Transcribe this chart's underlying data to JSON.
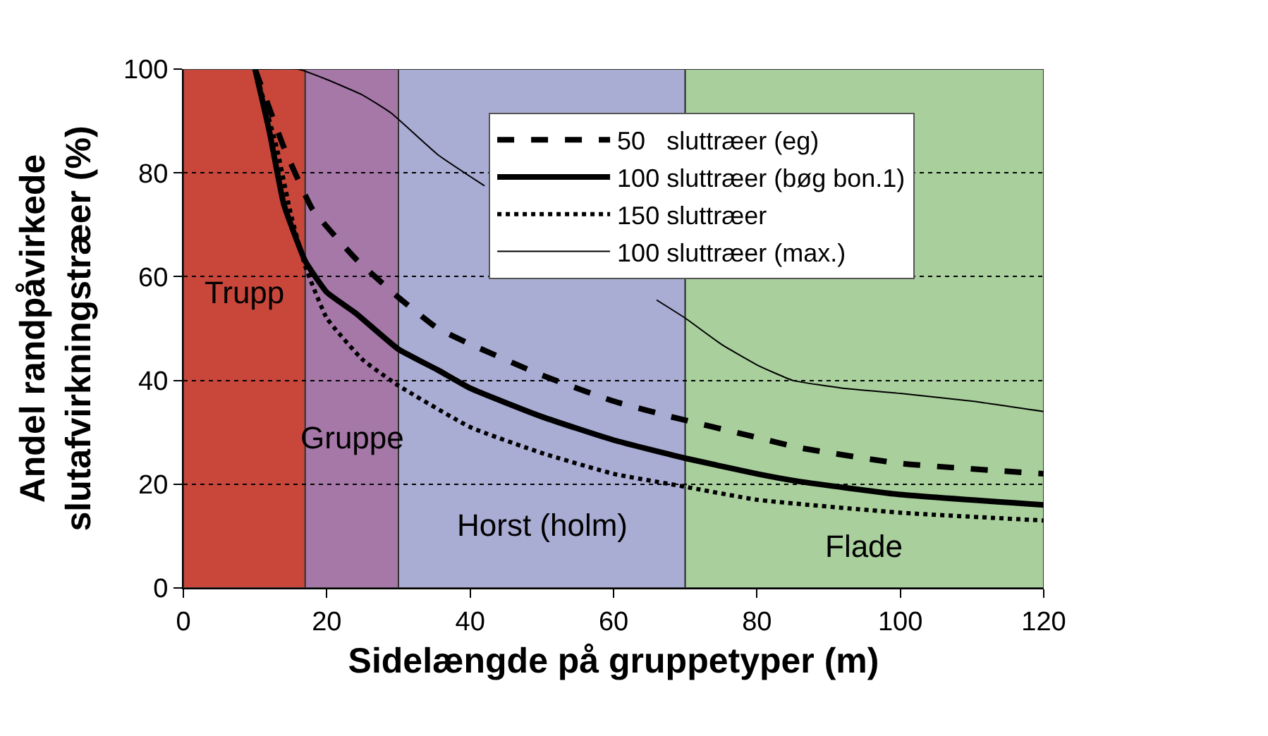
{
  "chart_data": {
    "type": "line",
    "xlabel": "Sidelængde på gruppetyper (m)",
    "ylabel": "Andel randpåvirkede\nslutafvirkningstræer (%)",
    "xlim": [
      0,
      120
    ],
    "xticks": [
      0,
      20,
      40,
      60,
      80,
      100,
      120
    ],
    "ylim": [
      0,
      100
    ],
    "yticks": [
      0,
      20,
      40,
      60,
      80,
      100
    ],
    "grid": "y",
    "legend": "top right",
    "marker": "none",
    "series": [
      {
        "name": "50   sluttræer (eg)",
        "color": "#000000",
        "line_style": "dashed",
        "x": [
          10,
          14,
          18,
          24,
          30,
          35.5,
          40,
          50,
          60,
          68,
          80,
          86,
          100,
          120
        ],
        "values": [
          100,
          85,
          73,
          63.5,
          56,
          50,
          47,
          41,
          36,
          33,
          29,
          27,
          24,
          22
        ]
      },
      {
        "name": "100 sluttræer (bøg bon.1)",
        "color": "#000000",
        "line_style": "solid",
        "x": [
          10,
          12,
          14,
          17,
          20,
          24,
          30,
          35.5,
          40,
          50,
          60,
          70,
          80,
          86,
          100,
          120
        ],
        "values": [
          100,
          88,
          74,
          63,
          57,
          53,
          46,
          42,
          38.5,
          33,
          28.5,
          25,
          22,
          20.5,
          18,
          16
        ]
      },
      {
        "name": "150 sluttræer",
        "color": "#000000",
        "line_style": "dotted",
        "x": [
          10,
          13,
          15,
          17,
          20,
          25,
          30,
          40,
          50,
          60,
          70,
          80,
          100,
          120
        ],
        "values": [
          100,
          85,
          72,
          62,
          52,
          44,
          39,
          31,
          26,
          22,
          19.5,
          17,
          14.5,
          13
        ]
      },
      {
        "name": "100 sluttræer (max.)",
        "color": "#000000",
        "line_style": "solid",
        "x": [
          10,
          16,
          20,
          25,
          29,
          35.5,
          42,
          55,
          66,
          70,
          75,
          80,
          85,
          92,
          100,
          110,
          120
        ],
        "values": [
          100,
          100,
          98,
          95,
          91.5,
          83.5,
          77.5,
          null,
          55.5,
          52,
          47,
          43,
          40,
          38.5,
          37.5,
          36,
          34
        ]
      }
    ],
    "bands": [
      {
        "axis": "x",
        "from": 0,
        "to": 17,
        "label": "Trupp",
        "color": "#c8473a"
      },
      {
        "axis": "x",
        "from": 17,
        "to": 30,
        "label": "Gruppe",
        "color": "#a678a8"
      },
      {
        "axis": "x",
        "from": 30,
        "to": 70,
        "label": "Horst (holm)",
        "color": "#a9acd3"
      },
      {
        "axis": "x",
        "from": 70,
        "to": 120,
        "label": "Flade",
        "color": "#a9cf9d"
      }
    ]
  }
}
